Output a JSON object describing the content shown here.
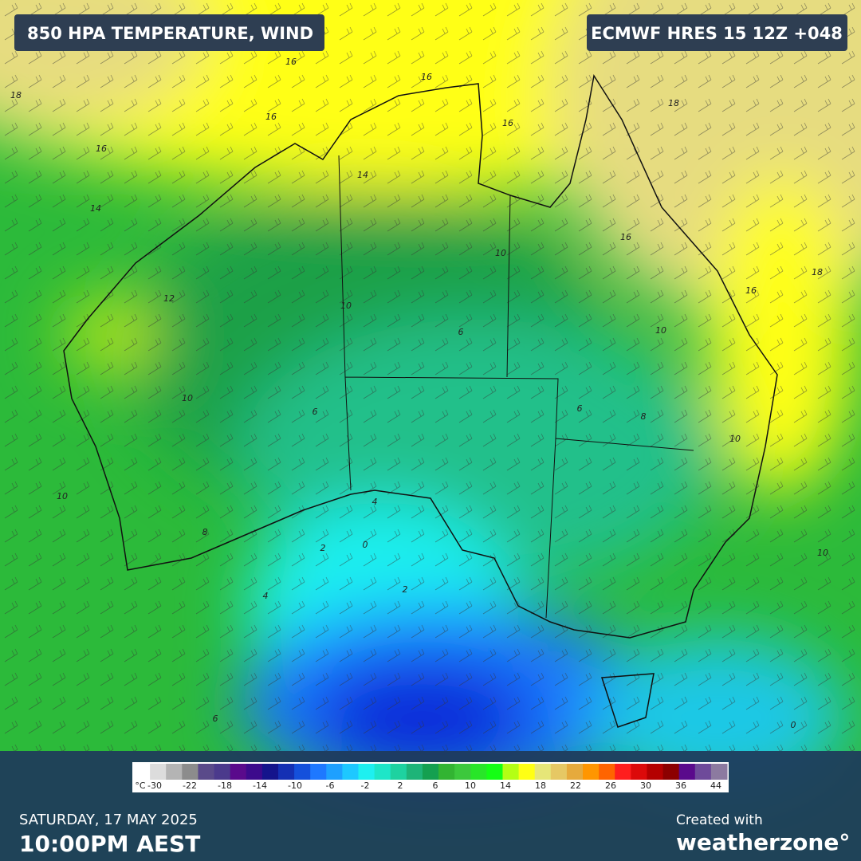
{
  "header": {
    "title": "850 HPA TEMPERATURE, WIND",
    "model": "ECMWF HRES 15 12Z +048"
  },
  "map": {
    "contour_labels": [
      16,
      16,
      16,
      16,
      16,
      18,
      18,
      16,
      16,
      18,
      14,
      14,
      10,
      10,
      12,
      10,
      10,
      6,
      6,
      6,
      8,
      10,
      10,
      8,
      4,
      0,
      2,
      2,
      4,
      10,
      0,
      6
    ]
  },
  "legend": {
    "unit": "°C",
    "ticks": [
      -30,
      -22,
      -18,
      -14,
      -10,
      -6,
      -2,
      2,
      6,
      10,
      14,
      18,
      22,
      26,
      30,
      36,
      44
    ],
    "colors": [
      "#ffffff",
      "#dcdcdc",
      "#b4b4b4",
      "#8c8c8c",
      "#5a4a8a",
      "#4b3a8c",
      "#5a0a8c",
      "#3c0a8c",
      "#14148c",
      "#1430b4",
      "#1450dc",
      "#1e78ff",
      "#1ea0ff",
      "#1ec8ff",
      "#1ef0f0",
      "#1ee6c8",
      "#1ed2a0",
      "#1eb478",
      "#14a050",
      "#32b432",
      "#3cc83c",
      "#28e628",
      "#14ff14",
      "#b4ff14",
      "#ffff14",
      "#e6e678",
      "#e6c864",
      "#e6aa3c",
      "#ff9600",
      "#ff6400",
      "#ff1e1e",
      "#dc0a0a",
      "#b40000",
      "#8c0000",
      "#5a0a8c",
      "#6e4a9a",
      "#8c7aa0"
    ]
  },
  "footer": {
    "day": "SATURDAY, 17 MAY 2025",
    "time": "10:00PM AEST",
    "credit": "Created with",
    "brand": "weatherzone°"
  }
}
